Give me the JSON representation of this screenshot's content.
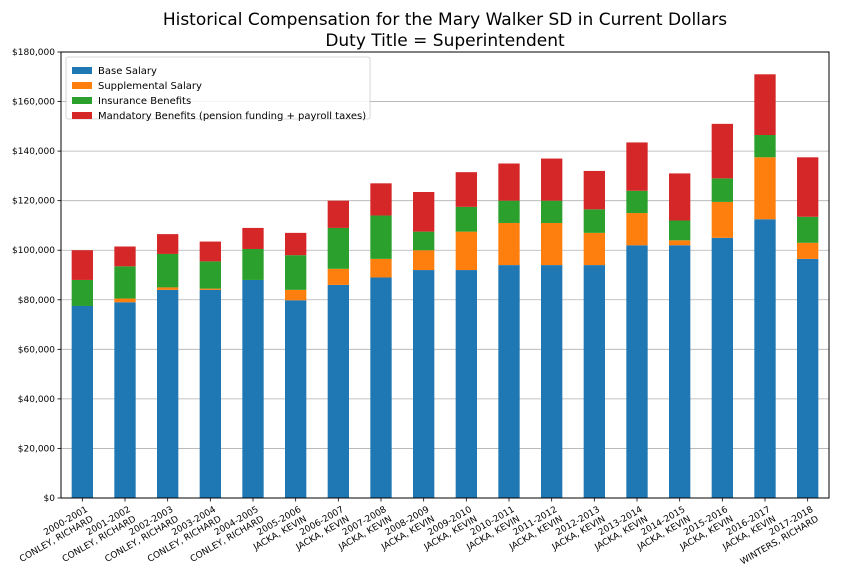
{
  "chart_data": {
    "type": "bar",
    "stacked": true,
    "title": "Historical Compensation for the Mary Walker SD in Current Dollars",
    "subtitle": "Duty Title = Superintendent",
    "xlabel": "",
    "ylabel": "",
    "ylim": [
      0,
      180000
    ],
    "yticks": [
      0,
      20000,
      40000,
      60000,
      80000,
      100000,
      120000,
      140000,
      160000,
      180000
    ],
    "ytick_labels": [
      "$0",
      "$20,000",
      "$40,000",
      "$60,000",
      "$80,000",
      "$100,000",
      "$120,000",
      "$140,000",
      "$160,000",
      "$180,000"
    ],
    "grid": "horizontal",
    "legend_position": "top-left",
    "categories": [
      [
        "2000-2001",
        "CONLEY, RICHARD"
      ],
      [
        "2001-2002",
        "CONLEY, RICHARD"
      ],
      [
        "2002-2003",
        "CONLEY, RICHARD"
      ],
      [
        "2003-2004",
        "CONLEY, RICHARD"
      ],
      [
        "2004-2005",
        "CONLEY, RICHARD"
      ],
      [
        "2005-2006",
        "JACKA, KEVIN"
      ],
      [
        "2006-2007",
        "JACKA, KEVIN"
      ],
      [
        "2007-2008",
        "JACKA, KEVIN"
      ],
      [
        "2008-2009",
        "JACKA, KEVIN"
      ],
      [
        "2009-2010",
        "JACKA, KEVIN"
      ],
      [
        "2010-2011",
        "JACKA, KEVIN"
      ],
      [
        "2011-2012",
        "JACKA, KEVIN"
      ],
      [
        "2012-2013",
        "JACKA, KEVIN"
      ],
      [
        "2013-2014",
        "JACKA, KEVIN"
      ],
      [
        "2014-2015",
        "JACKA, KEVIN"
      ],
      [
        "2015-2016",
        "JACKA, KEVIN"
      ],
      [
        "2016-2017",
        "JACKA, KEVIN"
      ],
      [
        "2017-2018",
        "WINTERS, RICHARD"
      ]
    ],
    "series": [
      {
        "name": "Base Salary",
        "color": "#1f77b4",
        "values": [
          77500,
          79000,
          84000,
          84000,
          88000,
          79800,
          86000,
          89000,
          92000,
          92000,
          94000,
          94000,
          94000,
          102000,
          102000,
          105000,
          112500,
          96500
        ]
      },
      {
        "name": "Supplemental Salary",
        "color": "#ff7f0e",
        "values": [
          0,
          1500,
          1000,
          500,
          0,
          4200,
          6500,
          7500,
          8000,
          15500,
          17000,
          17000,
          13000,
          13000,
          2000,
          14500,
          25000,
          6500
        ]
      },
      {
        "name": "Insurance Benefits",
        "color": "#2ca02c",
        "values": [
          10500,
          13000,
          13500,
          11000,
          12500,
          14000,
          16500,
          17500,
          7500,
          10000,
          9000,
          9000,
          9500,
          9000,
          8000,
          9500,
          9000,
          10500
        ]
      },
      {
        "name": "Mandatory Benefits (pension funding + payroll taxes)",
        "color": "#d62728",
        "values": [
          12000,
          8000,
          8000,
          8000,
          8500,
          9000,
          11000,
          13000,
          16000,
          14000,
          15000,
          17000,
          15500,
          19500,
          19000,
          22000,
          24500,
          24000
        ]
      }
    ]
  }
}
